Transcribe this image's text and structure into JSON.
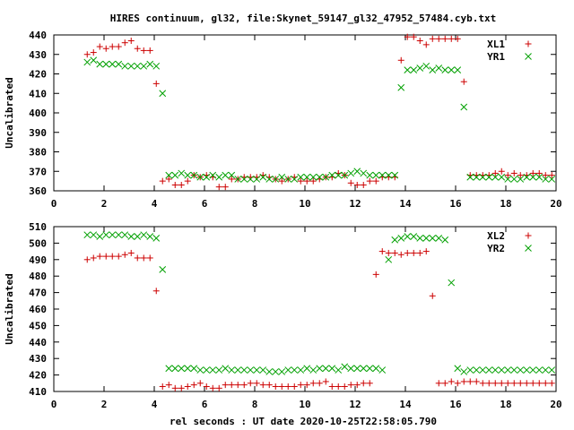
{
  "title": "HIRES continuum, gl32, file:Skynet_59147_gl32_47952_57484.cyb.txt",
  "xlabel": "rel seconds : UT date 2020-10-25T22:58:05.790",
  "chart_data": [
    {
      "type": "scatter",
      "ylabel": "Uncalibrated",
      "xlim": [
        0,
        20
      ],
      "ylim": [
        360,
        440
      ],
      "xticks": [
        0,
        2,
        4,
        6,
        8,
        10,
        12,
        14,
        16,
        18,
        20
      ],
      "yticks": [
        360,
        370,
        380,
        390,
        400,
        410,
        420,
        430,
        440
      ],
      "legend_position": "top-right",
      "series": [
        {
          "name": "XL1",
          "marker": "plus",
          "color": "#cc0000",
          "x": [
            1.33,
            1.58,
            1.83,
            2.08,
            2.33,
            2.58,
            2.83,
            3.08,
            3.33,
            3.58,
            3.83,
            4.08,
            4.33,
            4.58,
            4.83,
            5.08,
            5.33,
            5.58,
            5.83,
            6.08,
            6.33,
            6.58,
            6.83,
            7.08,
            7.33,
            7.58,
            7.83,
            8.08,
            8.33,
            8.58,
            8.83,
            9.08,
            9.33,
            9.58,
            9.83,
            10.08,
            10.33,
            10.58,
            10.83,
            11.08,
            11.33,
            11.58,
            11.83,
            12.08,
            12.33,
            12.58,
            12.83,
            13.08,
            13.33,
            13.58,
            13.83,
            14.08,
            14.33,
            14.58,
            14.83,
            15.08,
            15.33,
            15.58,
            15.83,
            16.08,
            16.33,
            16.58,
            16.83,
            17.08,
            17.33,
            17.58,
            17.83,
            18.08,
            18.33,
            18.58,
            18.83,
            19.08,
            19.33,
            19.58,
            19.83
          ],
          "y": [
            430,
            431,
            434,
            433,
            434,
            434,
            436,
            437,
            433,
            432,
            432,
            415,
            365,
            366,
            363,
            363,
            365,
            368,
            367,
            368,
            367,
            362,
            362,
            366,
            366,
            367,
            367,
            367,
            368,
            367,
            366,
            365,
            366,
            367,
            365,
            365,
            365,
            366,
            367,
            367,
            369,
            368,
            364,
            363,
            363,
            365,
            365,
            367,
            367,
            367,
            427,
            439,
            439,
            437,
            435,
            438,
            438,
            438,
            438,
            438,
            416,
            368,
            368,
            368,
            368,
            369,
            370,
            368,
            369,
            368,
            368,
            369,
            369,
            368,
            368
          ]
        },
        {
          "name": "YR1",
          "marker": "cross",
          "color": "#00a000",
          "x": [
            1.33,
            1.58,
            1.83,
            2.08,
            2.33,
            2.58,
            2.83,
            3.08,
            3.33,
            3.58,
            3.83,
            4.08,
            4.33,
            4.58,
            4.83,
            5.08,
            5.33,
            5.58,
            5.83,
            6.08,
            6.33,
            6.58,
            6.83,
            7.08,
            7.33,
            7.58,
            7.83,
            8.08,
            8.33,
            8.58,
            8.83,
            9.08,
            9.33,
            9.58,
            9.83,
            10.08,
            10.33,
            10.58,
            10.83,
            11.08,
            11.33,
            11.58,
            11.83,
            12.08,
            12.33,
            12.58,
            12.83,
            13.08,
            13.33,
            13.58,
            13.83,
            14.08,
            14.33,
            14.58,
            14.83,
            15.08,
            15.33,
            15.58,
            15.83,
            16.08,
            16.33,
            16.58,
            16.83,
            17.08,
            17.33,
            17.58,
            17.83,
            18.08,
            18.33,
            18.58,
            18.83,
            19.08,
            19.33,
            19.58,
            19.83
          ],
          "y": [
            426,
            427,
            425,
            425,
            425,
            425,
            424,
            424,
            424,
            424,
            425,
            424,
            410,
            368,
            368,
            369,
            368,
            368,
            367,
            367,
            368,
            367,
            368,
            368,
            366,
            366,
            366,
            366,
            367,
            366,
            366,
            367,
            366,
            366,
            367,
            367,
            367,
            367,
            367,
            368,
            368,
            368,
            369,
            370,
            369,
            368,
            368,
            368,
            368,
            368,
            413,
            422,
            422,
            423,
            424,
            422,
            423,
            422,
            422,
            422,
            403,
            367,
            367,
            367,
            367,
            367,
            367,
            366,
            366,
            366,
            367,
            367,
            367,
            366,
            366
          ]
        }
      ]
    },
    {
      "type": "scatter",
      "ylabel": "Uncalibrated",
      "xlim": [
        0,
        20
      ],
      "ylim": [
        410,
        510
      ],
      "xticks": [
        0,
        2,
        4,
        6,
        8,
        10,
        12,
        14,
        16,
        18,
        20
      ],
      "yticks": [
        410,
        420,
        430,
        440,
        450,
        460,
        470,
        480,
        490,
        500,
        510
      ],
      "legend_position": "top-right",
      "series": [
        {
          "name": "XL2",
          "marker": "plus",
          "color": "#cc0000",
          "x": [
            1.33,
            1.58,
            1.83,
            2.08,
            2.33,
            2.58,
            2.83,
            3.08,
            3.33,
            3.58,
            3.83,
            4.08,
            4.33,
            4.58,
            4.83,
            5.08,
            5.33,
            5.58,
            5.83,
            6.08,
            6.33,
            6.58,
            6.83,
            7.08,
            7.33,
            7.58,
            7.83,
            8.08,
            8.33,
            8.58,
            8.83,
            9.08,
            9.33,
            9.58,
            9.83,
            10.08,
            10.33,
            10.58,
            10.83,
            11.08,
            11.33,
            11.58,
            11.83,
            12.08,
            12.33,
            12.58,
            12.83,
            13.08,
            13.33,
            13.58,
            13.83,
            14.08,
            14.33,
            14.58,
            14.83,
            15.08,
            15.33,
            15.58,
            15.83,
            16.08,
            16.33,
            16.58,
            16.83,
            17.08,
            17.33,
            17.58,
            17.83,
            18.08,
            18.33,
            18.58,
            18.83,
            19.08,
            19.33,
            19.58,
            19.83
          ],
          "y": [
            490,
            491,
            492,
            492,
            492,
            492,
            493,
            494,
            491,
            491,
            491,
            471,
            413,
            414,
            412,
            412,
            413,
            414,
            415,
            413,
            412,
            412,
            414,
            414,
            414,
            414,
            415,
            415,
            414,
            414,
            413,
            413,
            413,
            413,
            414,
            414,
            415,
            415,
            416,
            413,
            413,
            413,
            414,
            414,
            415,
            415,
            481,
            495,
            494,
            494,
            493,
            494,
            494,
            494,
            495,
            468,
            415,
            415,
            416,
            415,
            416,
            416,
            416,
            415,
            415,
            415,
            415,
            415,
            415,
            415,
            415,
            415,
            415,
            415,
            415
          ]
        },
        {
          "name": "YR2",
          "marker": "cross",
          "color": "#00a000",
          "x": [
            1.33,
            1.58,
            1.83,
            2.08,
            2.33,
            2.58,
            2.83,
            3.08,
            3.33,
            3.58,
            3.83,
            4.08,
            4.33,
            4.58,
            4.83,
            5.08,
            5.33,
            5.58,
            5.83,
            6.08,
            6.33,
            6.58,
            6.83,
            7.08,
            7.33,
            7.58,
            7.83,
            8.08,
            8.33,
            8.58,
            8.83,
            9.08,
            9.33,
            9.58,
            9.83,
            10.08,
            10.33,
            10.58,
            10.83,
            11.08,
            11.33,
            11.58,
            11.83,
            12.08,
            12.33,
            12.58,
            12.83,
            13.08,
            13.33,
            13.58,
            13.83,
            14.08,
            14.33,
            14.58,
            14.83,
            15.08,
            15.33,
            15.58,
            15.83,
            16.08,
            16.33,
            16.58,
            16.83,
            17.08,
            17.33,
            17.58,
            17.83,
            18.08,
            18.33,
            18.58,
            18.83,
            19.08,
            19.33,
            19.58,
            19.83
          ],
          "y": [
            505,
            505,
            504,
            505,
            505,
            505,
            505,
            504,
            504,
            505,
            504,
            503,
            484,
            424,
            424,
            424,
            424,
            424,
            423,
            423,
            423,
            423,
            424,
            423,
            423,
            423,
            423,
            423,
            423,
            422,
            422,
            422,
            423,
            423,
            423,
            424,
            423,
            424,
            424,
            424,
            423,
            425,
            424,
            424,
            424,
            424,
            424,
            423,
            490,
            502,
            503,
            504,
            504,
            503,
            503,
            503,
            503,
            502,
            476,
            424,
            422,
            423,
            423,
            423,
            423,
            423,
            423,
            423,
            423,
            423,
            423,
            423,
            423,
            423,
            423
          ]
        }
      ]
    }
  ]
}
